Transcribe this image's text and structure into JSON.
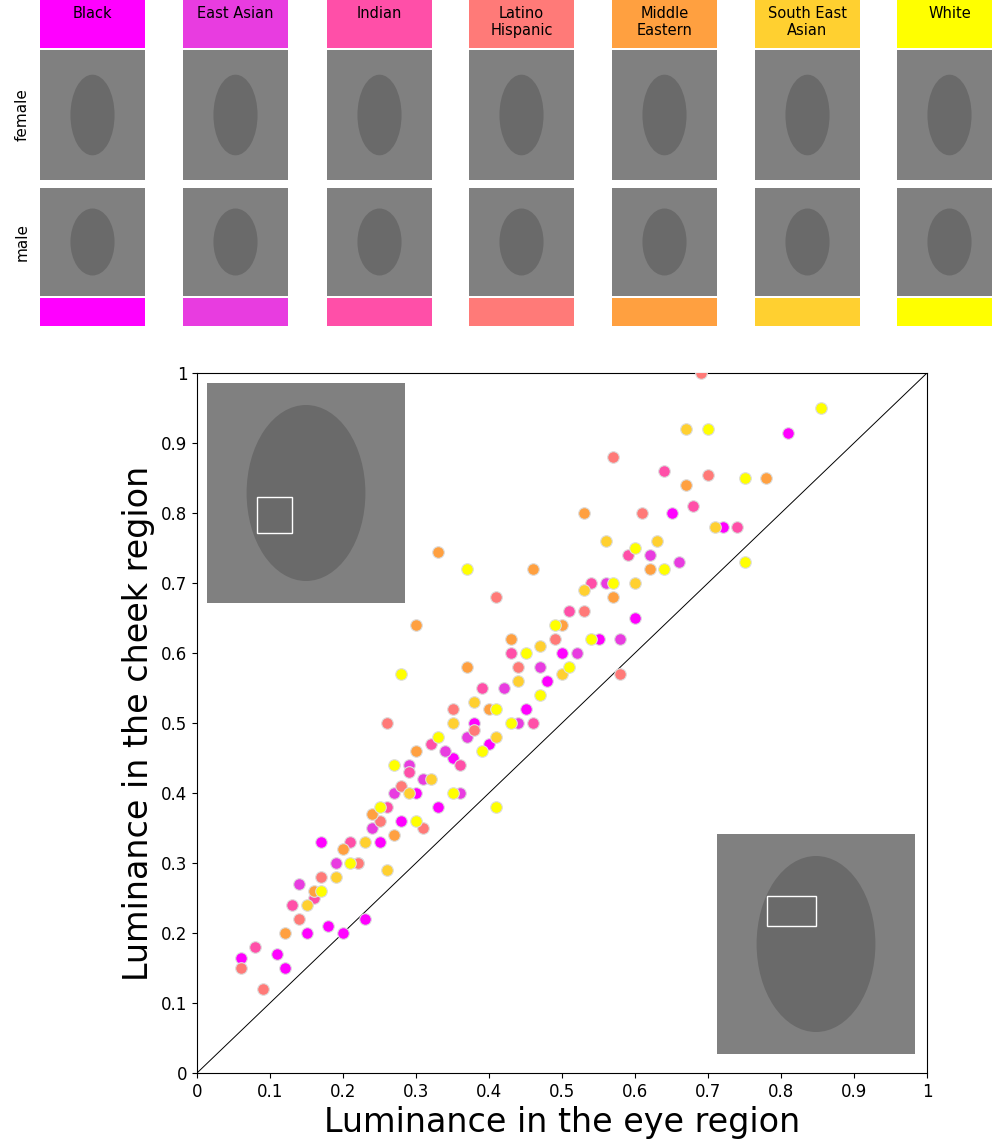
{
  "chart_data": {
    "type": "scatter",
    "rows": [
      "female",
      "male"
    ],
    "x_label": "Luminance in the eye region",
    "y_label": "Luminance in the cheek region",
    "xlim": [
      0,
      1
    ],
    "ylim": [
      0,
      1
    ],
    "xticks": [
      0,
      0.1,
      0.2,
      0.3,
      0.4,
      0.5,
      0.6,
      0.7,
      0.8,
      0.9,
      1
    ],
    "yticks": [
      0,
      0.1,
      0.2,
      0.3,
      0.4,
      0.5,
      0.6,
      0.7,
      0.8,
      0.9,
      1
    ],
    "tick_labels": true,
    "series": [
      {
        "name": "Black",
        "color": "#ff00ff",
        "x": [
          0.06,
          0.11,
          0.12,
          0.15,
          0.18,
          0.2,
          0.22,
          0.25,
          0.28,
          0.3,
          0.33,
          0.35,
          0.38,
          0.4,
          0.45,
          0.48,
          0.5,
          0.55,
          0.6,
          0.65,
          0.72,
          0.81,
          0.23,
          0.17
        ],
        "y": [
          0.165,
          0.17,
          0.15,
          0.2,
          0.21,
          0.2,
          0.3,
          0.33,
          0.36,
          0.4,
          0.38,
          0.45,
          0.5,
          0.47,
          0.52,
          0.56,
          0.6,
          0.62,
          0.65,
          0.8,
          0.78,
          0.915,
          0.22,
          0.33
        ]
      },
      {
        "name": "East Asian",
        "color": "#e83ce0",
        "x": [
          0.14,
          0.19,
          0.24,
          0.27,
          0.31,
          0.34,
          0.37,
          0.42,
          0.44,
          0.47,
          0.52,
          0.56,
          0.58,
          0.62,
          0.66,
          0.36,
          0.29
        ],
        "y": [
          0.27,
          0.3,
          0.35,
          0.4,
          0.42,
          0.46,
          0.48,
          0.55,
          0.5,
          0.58,
          0.6,
          0.7,
          0.62,
          0.74,
          0.73,
          0.4,
          0.44
        ]
      },
      {
        "name": "Indian",
        "color": "#ff4fa8",
        "x": [
          0.08,
          0.13,
          0.16,
          0.21,
          0.26,
          0.29,
          0.32,
          0.36,
          0.39,
          0.43,
          0.46,
          0.51,
          0.54,
          0.59,
          0.64,
          0.68,
          0.74
        ],
        "y": [
          0.18,
          0.24,
          0.25,
          0.33,
          0.38,
          0.43,
          0.47,
          0.44,
          0.55,
          0.6,
          0.5,
          0.66,
          0.7,
          0.74,
          0.86,
          0.81,
          0.78
        ]
      },
      {
        "name": "Latino\nHispanic",
        "color": "#ff7a78",
        "x": [
          0.06,
          0.09,
          0.14,
          0.17,
          0.22,
          0.25,
          0.28,
          0.31,
          0.35,
          0.38,
          0.41,
          0.44,
          0.49,
          0.53,
          0.57,
          0.61,
          0.69,
          0.7,
          0.58,
          0.26
        ],
        "y": [
          0.15,
          0.12,
          0.22,
          0.28,
          0.3,
          0.36,
          0.41,
          0.35,
          0.52,
          0.49,
          0.68,
          0.58,
          0.62,
          0.66,
          0.88,
          0.8,
          1.0,
          0.855,
          0.57,
          0.5
        ]
      },
      {
        "name": "Middle\nEastern",
        "color": "#ffa040",
        "x": [
          0.12,
          0.16,
          0.2,
          0.24,
          0.27,
          0.3,
          0.33,
          0.37,
          0.4,
          0.43,
          0.46,
          0.5,
          0.53,
          0.57,
          0.62,
          0.67,
          0.78,
          0.3
        ],
        "y": [
          0.2,
          0.26,
          0.32,
          0.37,
          0.34,
          0.46,
          0.745,
          0.58,
          0.52,
          0.62,
          0.72,
          0.64,
          0.8,
          0.68,
          0.72,
          0.84,
          0.85,
          0.64
        ]
      },
      {
        "name": "South East\nAsian",
        "color": "#ffd030",
        "x": [
          0.15,
          0.19,
          0.23,
          0.26,
          0.29,
          0.32,
          0.35,
          0.38,
          0.41,
          0.44,
          0.47,
          0.5,
          0.53,
          0.56,
          0.6,
          0.63,
          0.67,
          0.71
        ],
        "y": [
          0.24,
          0.28,
          0.33,
          0.29,
          0.4,
          0.42,
          0.5,
          0.53,
          0.48,
          0.56,
          0.61,
          0.57,
          0.69,
          0.76,
          0.7,
          0.76,
          0.92,
          0.78
        ]
      },
      {
        "name": "White",
        "color": "#ffff00",
        "x": [
          0.17,
          0.21,
          0.25,
          0.27,
          0.3,
          0.33,
          0.35,
          0.37,
          0.39,
          0.41,
          0.43,
          0.45,
          0.47,
          0.49,
          0.51,
          0.54,
          0.57,
          0.6,
          0.64,
          0.7,
          0.75,
          0.75,
          0.855,
          0.41,
          0.28
        ],
        "y": [
          0.26,
          0.3,
          0.38,
          0.44,
          0.36,
          0.48,
          0.4,
          0.72,
          0.46,
          0.52,
          0.5,
          0.6,
          0.54,
          0.64,
          0.58,
          0.62,
          0.7,
          0.75,
          0.72,
          0.92,
          0.85,
          0.73,
          0.95,
          0.38,
          0.57
        ]
      }
    ]
  }
}
